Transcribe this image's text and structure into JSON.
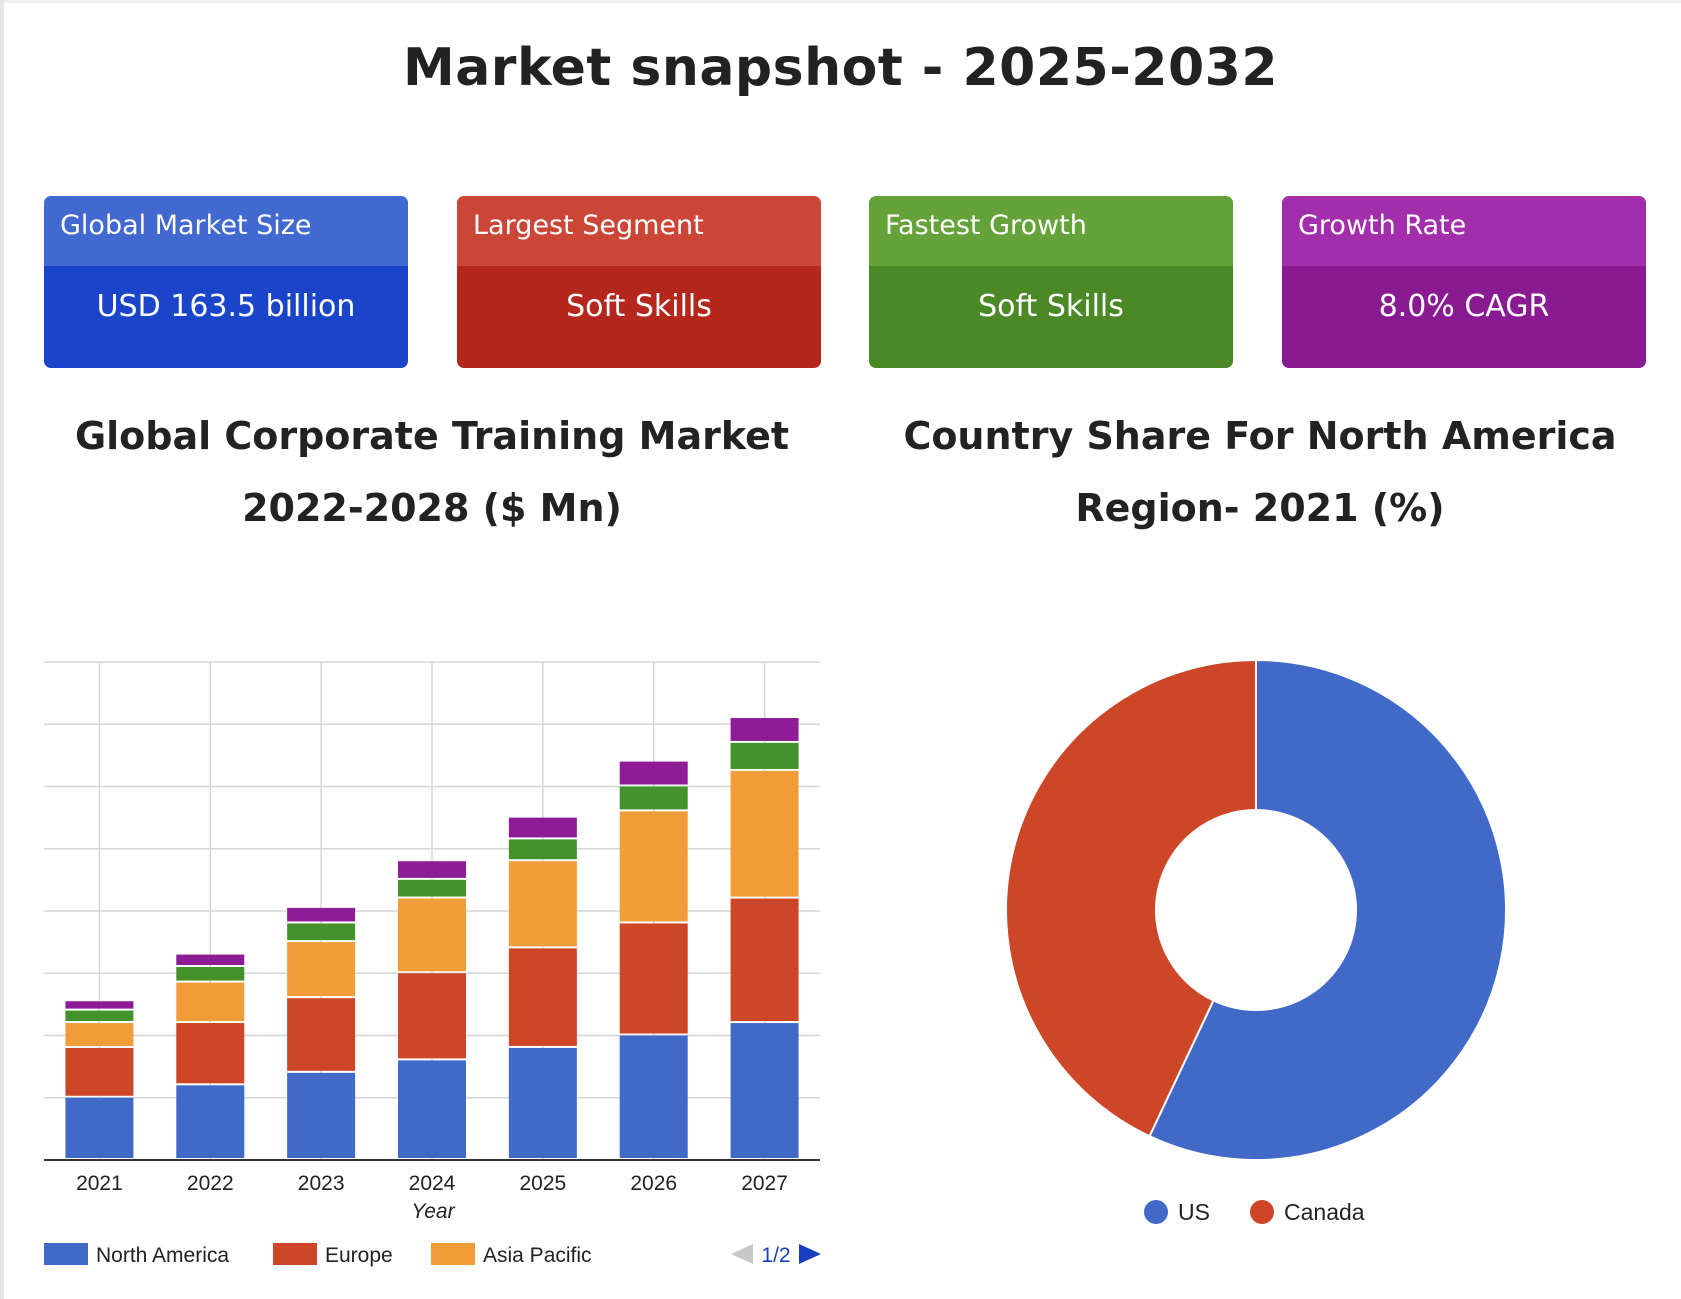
{
  "page_title": "Market snapshot - 2025-2032",
  "cards": [
    {
      "label": "Global Market Size",
      "value": "USD 163.5 billion",
      "header_color": "#4169d0",
      "value_color": "#1a45c8"
    },
    {
      "label": "Largest Segment",
      "value": "Soft Skills",
      "header_color": "#cc4637",
      "value_color": "#b5271c"
    },
    {
      "label": "Fastest Growth",
      "value": "Soft Skills",
      "header_color": "#65a23a",
      "value_color": "#4b8826"
    },
    {
      "label": "Growth Rate",
      "value": "8.0% CAGR",
      "header_color": "#a22eab",
      "value_color": "#8a1a92"
    }
  ],
  "bar_chart_title_line1": "Global Corporate Training Market",
  "bar_chart_title_line2": "2022-2028 ($ Mn)",
  "pie_chart_title_line1": "Country Share For North America",
  "pie_chart_title_line2": "Region- 2021 (%)",
  "pagination": "1/2",
  "chart_data": [
    {
      "type": "bar",
      "stacked": true,
      "categories": [
        "2021",
        "2022",
        "2023",
        "2024",
        "2025",
        "2026",
        "2027"
      ],
      "xlabel": "Year",
      "ylabel": "",
      "ylim": [
        0,
        80
      ],
      "grid": true,
      "legend_position": "bottom",
      "series": [
        {
          "name": "North America",
          "color": "#4169c8",
          "values": [
            10,
            12,
            14,
            16,
            18,
            20,
            22
          ]
        },
        {
          "name": "Europe",
          "color": "#cc4627",
          "values": [
            8,
            10,
            12,
            14,
            16,
            18,
            20
          ]
        },
        {
          "name": "Asia Pacific",
          "color": "#f09c38",
          "values": [
            4,
            6.5,
            9,
            12,
            14,
            18,
            20.5
          ]
        },
        {
          "name": "",
          "color": "#43922c",
          "values": [
            2,
            2.5,
            3,
            3,
            3.5,
            4,
            4.5
          ]
        },
        {
          "name": "",
          "color": "#8e1c96",
          "values": [
            1.5,
            2,
            2.5,
            3,
            3.5,
            4,
            4
          ]
        }
      ]
    },
    {
      "type": "pie",
      "donut": true,
      "legend_position": "bottom",
      "slices": [
        {
          "label": "US",
          "value": 57,
          "color": "#4169c8"
        },
        {
          "label": "Canada",
          "value": 43,
          "color": "#cc4627"
        }
      ]
    }
  ]
}
